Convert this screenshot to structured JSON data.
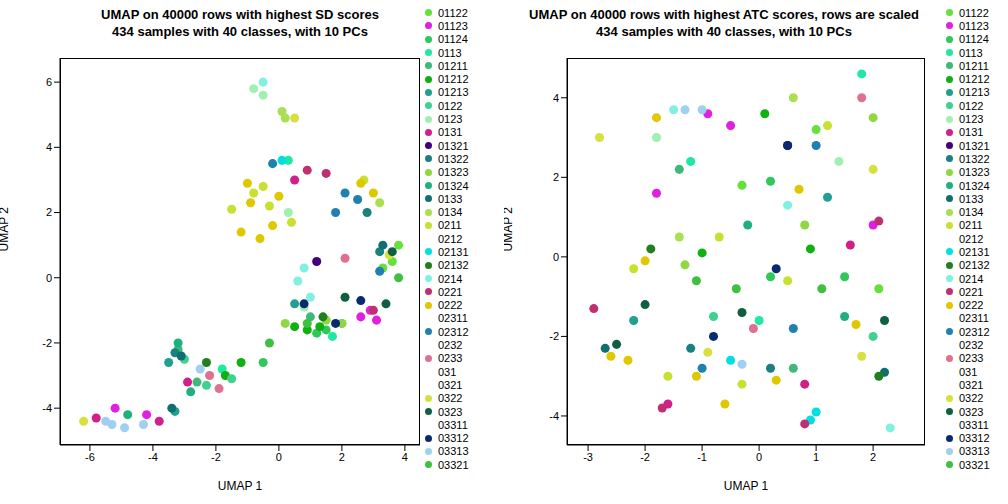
{
  "chart_data": [
    {
      "type": "scatter",
      "title": "UMAP on 40000 rows with highest SD scores\n434 samples with 40 classes, with 10 PCs",
      "x_label": "UMAP 1",
      "y_label": "UMAP 2",
      "marker": "circle",
      "xlim": [
        -6.95,
        4.48
      ],
      "xticks": [
        -6,
        -4,
        -2,
        0,
        2,
        4
      ],
      "ylim": [
        -5.13,
        6.74
      ],
      "yticks": [
        -4,
        -2,
        0,
        2,
        4,
        6
      ],
      "series": [
        {
          "name": "01122",
          "color": "#66e03a",
          "x": [
            3.6,
            3.8,
            3.3
          ],
          "y": [
            0.5,
            1.0,
            0.3
          ]
        },
        {
          "name": "01123",
          "color": "#e020e0",
          "x": [
            2.6,
            2.9,
            -4.2,
            -5.2,
            3.1
          ],
          "y": [
            -1.2,
            -1.0,
            -4.2,
            -4.0,
            -1.3
          ]
        },
        {
          "name": "01124",
          "color": "#2fc85a",
          "x": [
            1.5,
            2.0,
            -0.5,
            1.2
          ],
          "y": [
            -1.6,
            -1.4,
            -2.6,
            -1.7
          ]
        },
        {
          "name": "0113",
          "color": "#20e8a0",
          "x": [
            0.3,
            -1.8,
            1.7
          ],
          "y": [
            3.6,
            -2.8,
            -1.8
          ]
        },
        {
          "name": "01211",
          "color": "#3fb87a",
          "x": [
            -3.2,
            -2.6,
            1.0
          ],
          "y": [
            -2.2,
            -3.2,
            -1.2
          ]
        },
        {
          "name": "01212",
          "color": "#10b010",
          "x": [
            0.9,
            1.3,
            -1.7,
            -1.2,
            0.5
          ],
          "y": [
            -1.6,
            -1.5,
            -3.0,
            -2.6,
            -1.5
          ]
        },
        {
          "name": "01213",
          "color": "#20a090",
          "x": [
            -3.3,
            -3.5,
            0.5
          ],
          "y": [
            -4.1,
            -2.6,
            -0.8
          ]
        },
        {
          "name": "0122",
          "color": "#40d090",
          "x": [
            -3.0,
            -2.3,
            -1.5
          ],
          "y": [
            -2.5,
            -3.3,
            -3.1
          ]
        },
        {
          "name": "0123",
          "color": "#a0f0b0",
          "x": [
            -0.8,
            -0.5,
            0.3,
            0.8
          ],
          "y": [
            5.8,
            5.6,
            2.0,
            -0.9
          ]
        },
        {
          "name": "0131",
          "color": "#d0208a",
          "x": [
            -5.8,
            -3.8,
            -2.9,
            0.5
          ],
          "y": [
            -4.3,
            -4.4,
            -3.2,
            3.0
          ]
        },
        {
          "name": "01321",
          "color": "#400080",
          "x": [
            1.2
          ],
          "y": [
            0.5
          ]
        },
        {
          "name": "01322",
          "color": "#1a8080",
          "x": [
            -3.3,
            3.2,
            2.8
          ],
          "y": [
            -2.3,
            0.8,
            2.0
          ]
        },
        {
          "name": "01323",
          "color": "#90d840",
          "x": [
            2.0,
            1.5,
            0.2
          ],
          "y": [
            -1.4,
            -1.3,
            -1.4
          ]
        },
        {
          "name": "01324",
          "color": "#20b080",
          "x": [
            -2.8,
            -3.2,
            -4.8
          ],
          "y": [
            -3.5,
            -2.0,
            -4.2
          ]
        },
        {
          "name": "0133",
          "color": "#107070",
          "x": [
            -3.1,
            -3.4,
            3.3
          ],
          "y": [
            -2.4,
            -4.0,
            1.0
          ]
        },
        {
          "name": "0134",
          "color": "#a8e050",
          "x": [
            0.1,
            0.2,
            3.2
          ],
          "y": [
            5.1,
            4.9,
            2.3
          ]
        },
        {
          "name": "0211",
          "color": "#c8e030",
          "x": [
            -0.8,
            -0.3,
            0.4,
            -1.5,
            -0.5,
            2.7
          ],
          "y": [
            2.6,
            2.2,
            1.7,
            2.1,
            2.8,
            3.0
          ]
        },
        {
          "name": "0212",
          "color": "#ffffff",
          "x": [],
          "y": []
        },
        {
          "name": "02131",
          "color": "#00e0e0",
          "x": [
            0.1
          ],
          "y": [
            3.6
          ]
        },
        {
          "name": "02132",
          "color": "#208020",
          "x": [
            -2.3,
            1.4
          ],
          "y": [
            -2.6,
            -1.2
          ]
        },
        {
          "name": "0214",
          "color": "#80f0e0",
          "x": [
            0.6,
            0.8,
            -0.5,
            1.0
          ],
          "y": [
            -0.1,
            0.3,
            6.0,
            -0.6
          ]
        },
        {
          "name": "0221",
          "color": "#c03070",
          "x": [
            0.9,
            1.5,
            3.0
          ],
          "y": [
            3.3,
            3.2,
            -1.0
          ]
        },
        {
          "name": "0222",
          "color": "#e0c800",
          "x": [
            -0.9,
            -1.2,
            -0.2,
            -1.0,
            0.0,
            -0.6,
            2.6,
            3.0
          ],
          "y": [
            2.3,
            1.4,
            1.6,
            2.9,
            2.5,
            1.2,
            2.9,
            2.6
          ]
        },
        {
          "name": "02311",
          "color": "#ffffff",
          "x": [],
          "y": []
        },
        {
          "name": "02312",
          "color": "#2080b0",
          "x": [
            2.1,
            1.8,
            3.2,
            2.5,
            -0.2
          ],
          "y": [
            2.6,
            2.0,
            0.2,
            2.4,
            3.5
          ]
        },
        {
          "name": "0232",
          "color": "#ffffff",
          "x": [],
          "y": []
        },
        {
          "name": "0233",
          "color": "#e07090",
          "x": [
            -2.2,
            -1.9,
            2.1
          ],
          "y": [
            -3.0,
            -3.4,
            0.6
          ]
        },
        {
          "name": "031",
          "color": "#ffffff",
          "x": [],
          "y": []
        },
        {
          "name": "0321",
          "color": "#ffffff",
          "x": [],
          "y": []
        },
        {
          "name": "0322",
          "color": "#d8e040",
          "x": [
            0.5,
            3.5,
            -6.2
          ],
          "y": [
            4.9,
            0.7,
            -4.4
          ]
        },
        {
          "name": "0323",
          "color": "#106040",
          "x": [
            3.6,
            3.4,
            2.1
          ],
          "y": [
            0.8,
            -0.8,
            -0.6
          ]
        },
        {
          "name": "03311",
          "color": "#ffffff",
          "x": [],
          "y": []
        },
        {
          "name": "03312",
          "color": "#0a2a70",
          "x": [
            1.8,
            0.8,
            2.6
          ],
          "y": [
            -1.4,
            -0.8,
            -0.7
          ]
        },
        {
          "name": "03313",
          "color": "#a0d0f0",
          "x": [
            -5.5,
            -5.3,
            -4.9,
            -4.3,
            -2.5
          ],
          "y": [
            -4.4,
            -4.5,
            -4.6,
            -4.5,
            -2.8
          ]
        },
        {
          "name": "03321",
          "color": "#40c040",
          "x": [
            -0.3,
            0.9,
            3.8
          ],
          "y": [
            -2.0,
            -1.4,
            0.0
          ]
        }
      ]
    },
    {
      "type": "scatter",
      "title": "UMAP on 40000 rows with highest ATC scores, rows are scaled\n434 samples with 40 classes, with 10 PCs",
      "x_label": "UMAP 1",
      "y_label": "UMAP 2",
      "marker": "circle",
      "xlim": [
        -3.37,
        2.91
      ],
      "xticks": [
        -3,
        -2,
        -1,
        0,
        1,
        2
      ],
      "ylim": [
        -4.73,
        5.0
      ],
      "yticks": [
        -4,
        -2,
        0,
        2,
        4
      ],
      "series": [
        {
          "name": "01122",
          "color": "#66e03a",
          "x": [
            1.0,
            -0.3,
            2.1
          ],
          "y": [
            3.2,
            1.8,
            -0.8
          ]
        },
        {
          "name": "01123",
          "color": "#e020e0",
          "x": [
            -1.8,
            -0.9,
            2.0,
            -0.5
          ],
          "y": [
            1.6,
            3.6,
            0.8,
            3.3
          ]
        },
        {
          "name": "01124",
          "color": "#2fc85a",
          "x": [
            0.2,
            0.2,
            1.5
          ],
          "y": [
            1.9,
            -0.5,
            -0.5
          ]
        },
        {
          "name": "0113",
          "color": "#20e8a0",
          "x": [
            1.8,
            0.0,
            -1.2
          ],
          "y": [
            4.6,
            -1.6,
            2.4
          ]
        },
        {
          "name": "01211",
          "color": "#3fb87a",
          "x": [
            -1.4,
            0.6
          ],
          "y": [
            2.2,
            -2.8
          ]
        },
        {
          "name": "01212",
          "color": "#10b010",
          "x": [
            -1.0,
            0.1,
            0.9
          ],
          "y": [
            0.1,
            3.6,
            0.2
          ]
        },
        {
          "name": "01213",
          "color": "#20a090",
          "x": [
            -2.2,
            1.2
          ],
          "y": [
            -1.6,
            1.5
          ]
        },
        {
          "name": "0122",
          "color": "#40d090",
          "x": [
            -0.8,
            2.0
          ],
          "y": [
            -1.5,
            -2.0
          ]
        },
        {
          "name": "0123",
          "color": "#a0f0b0",
          "x": [
            -1.8,
            1.4
          ],
          "y": [
            3.0,
            2.4
          ]
        },
        {
          "name": "0131",
          "color": "#d0208a",
          "x": [
            -1.6,
            1.6,
            0.8
          ],
          "y": [
            -3.7,
            0.3,
            -3.2
          ]
        },
        {
          "name": "01321",
          "color": "#400080",
          "x": [
            0.5
          ],
          "y": [
            2.8
          ]
        },
        {
          "name": "01322",
          "color": "#1a8080",
          "x": [
            -1.2,
            0.2
          ],
          "y": [
            -2.3,
            -2.8
          ]
        },
        {
          "name": "01323",
          "color": "#90d840",
          "x": [
            0.8,
            -1.3,
            2.0
          ],
          "y": [
            0.8,
            -0.2,
            3.5
          ]
        },
        {
          "name": "01324",
          "color": "#20b080",
          "x": [
            -0.2,
            1.5
          ],
          "y": [
            0.8,
            -1.5
          ]
        },
        {
          "name": "0133",
          "color": "#107070",
          "x": [
            -2.7,
            2.2
          ],
          "y": [
            -2.3,
            -2.9
          ]
        },
        {
          "name": "0134",
          "color": "#a8e050",
          "x": [
            0.6,
            -1.4
          ],
          "y": [
            4.0,
            0.5
          ]
        },
        {
          "name": "0211",
          "color": "#c8e030",
          "x": [
            -2.2,
            -0.7,
            -1.6,
            0.5,
            1.2,
            -0.3
          ],
          "y": [
            -0.3,
            0.5,
            -3.0,
            -0.6,
            3.3,
            -3.2
          ]
        },
        {
          "name": "0212",
          "color": "#ffffff",
          "x": [],
          "y": []
        },
        {
          "name": "02131",
          "color": "#00e0e0",
          "x": [
            0.9,
            1.0,
            -0.5
          ],
          "y": [
            -4.1,
            -3.9,
            -2.6
          ]
        },
        {
          "name": "02132",
          "color": "#208020",
          "x": [
            -1.9,
            2.1
          ],
          "y": [
            0.2,
            -3.0
          ]
        },
        {
          "name": "0214",
          "color": "#80f0e0",
          "x": [
            2.3,
            -1.5,
            0.5
          ],
          "y": [
            -4.3,
            3.7,
            1.3
          ]
        },
        {
          "name": "0221",
          "color": "#c03070",
          "x": [
            -1.7,
            0.8,
            2.1,
            -2.9
          ],
          "y": [
            -3.8,
            -4.2,
            0.9,
            -1.3
          ]
        },
        {
          "name": "0222",
          "color": "#e0c800",
          "x": [
            -2.6,
            -2.3,
            -1.1,
            0.3,
            -0.6,
            -1.8,
            1.7,
            -2.0,
            0.7
          ],
          "y": [
            -2.5,
            -2.6,
            -3.0,
            -3.1,
            -3.7,
            3.5,
            -1.7,
            -0.1,
            1.7
          ]
        },
        {
          "name": "02311",
          "color": "#ffffff",
          "x": [],
          "y": []
        },
        {
          "name": "02312",
          "color": "#2080b0",
          "x": [
            -1.0,
            0.6,
            1.0
          ],
          "y": [
            -2.8,
            -1.8,
            2.8
          ]
        },
        {
          "name": "0232",
          "color": "#ffffff",
          "x": [],
          "y": []
        },
        {
          "name": "0233",
          "color": "#e07090",
          "x": [
            -0.1,
            1.8
          ],
          "y": [
            -1.8,
            4.0
          ]
        },
        {
          "name": "031",
          "color": "#ffffff",
          "x": [],
          "y": []
        },
        {
          "name": "0321",
          "color": "#ffffff",
          "x": [],
          "y": []
        },
        {
          "name": "0322",
          "color": "#d8e040",
          "x": [
            -2.8,
            1.8,
            -0.9,
            2.0
          ],
          "y": [
            3.0,
            -2.5,
            -2.4,
            2.2
          ]
        },
        {
          "name": "0323",
          "color": "#106040",
          "x": [
            -2.5,
            -2.0,
            2.2,
            -0.3
          ],
          "y": [
            -2.2,
            -1.2,
            -1.6,
            -1.4
          ]
        },
        {
          "name": "03311",
          "color": "#ffffff",
          "x": [],
          "y": []
        },
        {
          "name": "03312",
          "color": "#0a2a70",
          "x": [
            -0.8,
            0.5,
            0.3
          ],
          "y": [
            -2.0,
            2.8,
            -0.3
          ]
        },
        {
          "name": "03313",
          "color": "#a0d0f0",
          "x": [
            -1.3,
            -1.0,
            -0.3
          ],
          "y": [
            3.7,
            3.7,
            -2.7
          ]
        },
        {
          "name": "03321",
          "color": "#40c040",
          "x": [
            -1.1,
            -0.4,
            1.1
          ],
          "y": [
            -0.6,
            -0.8,
            -0.8
          ]
        }
      ]
    }
  ]
}
